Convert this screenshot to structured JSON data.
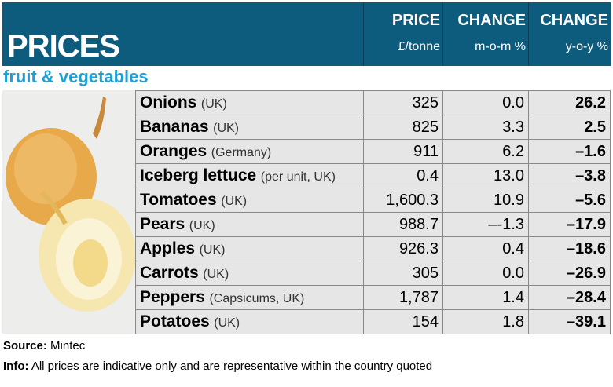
{
  "header": {
    "title": "PRICES",
    "columns": [
      {
        "label": "PRICE",
        "unit": "£/tonne"
      },
      {
        "label": "CHANGE",
        "unit": "m-o-m %"
      },
      {
        "label": "CHANGE",
        "unit": "y-o-y %"
      }
    ]
  },
  "subtitle": "fruit & vegetables",
  "rows": [
    {
      "name": "Onions",
      "origin": "(UK)",
      "price": "325",
      "mom": "0.0",
      "yoy": "26.2"
    },
    {
      "name": "Bananas",
      "origin": "(UK)",
      "price": "825",
      "mom": "3.3",
      "yoy": "2.5"
    },
    {
      "name": "Oranges",
      "origin": "(Germany)",
      "price": "911",
      "mom": "6.2",
      "yoy": "–1.6"
    },
    {
      "name": "Iceberg lettuce",
      "origin": "(per unit, UK)",
      "price": "0.4",
      "mom": "13.0",
      "yoy": "–3.8"
    },
    {
      "name": "Tomatoes",
      "origin": "(UK)",
      "price": "1,600.3",
      "mom": "10.9",
      "yoy": "–5.6"
    },
    {
      "name": "Pears",
      "origin": "(UK)",
      "price": "988.7",
      "mom": "–-1.3",
      "yoy": "–17.9"
    },
    {
      "name": "Apples",
      "origin": "(UK)",
      "price": "926.3",
      "mom": "0.4",
      "yoy": "–18.6"
    },
    {
      "name": "Carrots",
      "origin": "(UK)",
      "price": "305",
      "mom": "0.0",
      "yoy": "–26.9"
    },
    {
      "name": "Peppers",
      "origin": "(Capsicums, UK)",
      "price": "1,787",
      "mom": "1.4",
      "yoy": "–28.4"
    },
    {
      "name": "Potatoes",
      "origin": "(UK)",
      "price": "154",
      "mom": "1.8",
      "yoy": "–39.1"
    }
  ],
  "footer": {
    "source_label": "Source:",
    "source": "Mintec",
    "info_label": "Info:",
    "info": "All prices are indicative only and are representative within the country quoted"
  },
  "colors": {
    "header": "#0e5c7d",
    "subtitle": "#1ba0d8",
    "row": "#e6e6e6"
  }
}
